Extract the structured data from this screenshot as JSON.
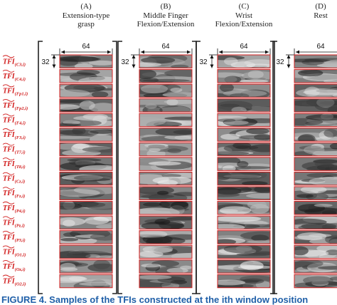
{
  "columns": [
    {
      "letter": "(A)",
      "title": [
        "Extension-type",
        "grasp"
      ]
    },
    {
      "letter": "(B)",
      "title": [
        "Middle Finger",
        "Flexion/Extension"
      ]
    },
    {
      "letter": "(C)",
      "title": [
        "Wrist",
        "Flexion/Extension"
      ]
    },
    {
      "letter": "(D)",
      "title": [
        "Rest"
      ]
    }
  ],
  "dimensions": {
    "width": "64",
    "height": "32"
  },
  "row_labels": [
    {
      "base": "TFI",
      "sub": "(C3,i)"
    },
    {
      "base": "TFI",
      "sub": "(C4,i)"
    },
    {
      "base": "TFI",
      "sub": "(Fp1,i)"
    },
    {
      "base": "TFI",
      "sub": "(Fp2,i)"
    },
    {
      "base": "TFI",
      "sub": "(F4,i)"
    },
    {
      "base": "TFI",
      "sub": "(F3,i)"
    },
    {
      "base": "TFI",
      "sub": "(T7,i)"
    },
    {
      "base": "TFI",
      "sub": "(T8,i)"
    },
    {
      "base": "TFI",
      "sub": "(Cz,i)"
    },
    {
      "base": "TFI",
      "sub": "(Fz,i)"
    },
    {
      "base": "TFI",
      "sub": "(P4,i)"
    },
    {
      "base": "TFI",
      "sub": "(Pz,i)"
    },
    {
      "base": "TFI",
      "sub": "(P3,i)"
    },
    {
      "base": "TFI",
      "sub": "(O1,i)"
    },
    {
      "base": "TFI",
      "sub": "(Oz,i)"
    },
    {
      "base": "TFI",
      "sub": "(O2,i)"
    }
  ],
  "caption": "FIGURE 4.  Samples of the TFIs constructed at the ith window position"
}
